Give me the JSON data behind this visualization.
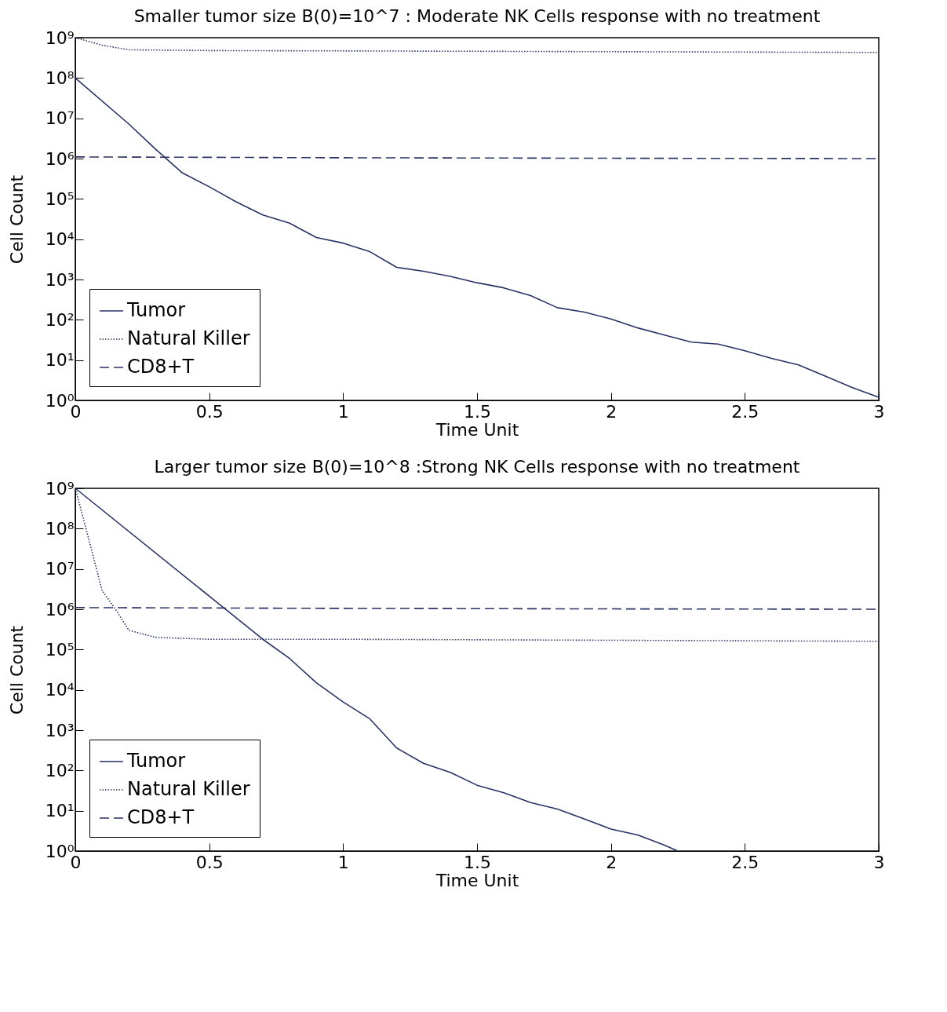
{
  "chart_data": [
    {
      "type": "line",
      "title": "Smaller tumor size B(0)=10^7 : Moderate NK Cells response with no treatment",
      "xlabel": "Time Unit",
      "ylabel": "Cell Count",
      "log": "y",
      "grid": false,
      "legend": "bottom left",
      "xlim": [
        0,
        3
      ],
      "xticks": [
        0,
        0.5,
        1,
        1.5,
        2,
        2.5,
        3
      ],
      "ylim": [
        1,
        1000000000
      ],
      "yticks": [
        {
          "value": 1,
          "label": "10⁰"
        },
        {
          "value": 10,
          "label": "10¹"
        },
        {
          "value": 100,
          "label": "10²"
        },
        {
          "value": 1000,
          "label": "10³"
        },
        {
          "value": 10000,
          "label": "10⁴"
        },
        {
          "value": 100000,
          "label": "10⁵"
        },
        {
          "value": 1000000,
          "label": "10⁶"
        },
        {
          "value": 10000000,
          "label": "10⁷"
        },
        {
          "value": 100000000,
          "label": "10⁸"
        },
        {
          "value": 1000000000,
          "label": "10⁹"
        }
      ],
      "series": [
        {
          "name": "Tumor",
          "color": "#283264",
          "line_style": "solid",
          "x": [
            0,
            0.2,
            0.3,
            0.4,
            0.5,
            0.6,
            0.7,
            0.8,
            0.9,
            1,
            1.1,
            1.2,
            1.3,
            1.4,
            1.5,
            1.6,
            1.7,
            1.8,
            1.9,
            2,
            2.1,
            2.2,
            2.3,
            2.4,
            2.5,
            2.6,
            2.7,
            2.8,
            2.9,
            3
          ],
          "values": [
            100000000,
            7200000,
            1700000,
            440000,
            200000,
            85000,
            40000,
            25000,
            11000,
            8000,
            4900,
            2000,
            1600,
            1200,
            830,
            620,
            400,
            200,
            155,
            105,
            63,
            42,
            28,
            25,
            17,
            11,
            7.6,
            4,
            2.1,
            1.2
          ]
        },
        {
          "name": "Natural Killer",
          "color": "#283264",
          "line_style": "dotted",
          "x": [
            0,
            0.1,
            0.2,
            0.5,
            1,
            2,
            3
          ],
          "values": [
            1000000000,
            650000000,
            500000000,
            480000000,
            470000000,
            450000000,
            430000000
          ]
        },
        {
          "name": "CD8+T",
          "color": "#283264",
          "line_style": "dashed",
          "x": [
            0,
            1,
            2,
            3
          ],
          "values": [
            1100000,
            1050000,
            1020000,
            1000000
          ]
        }
      ]
    },
    {
      "type": "line",
      "title": "Larger tumor size B(0)=10^8 :Strong NK Cells response with no treatment",
      "xlabel": "Time Unit",
      "ylabel": "Cell Count",
      "log": "y",
      "grid": false,
      "legend": "bottom left",
      "xlim": [
        0,
        3
      ],
      "xticks": [
        0,
        0.5,
        1,
        1.5,
        2,
        2.5,
        3
      ],
      "ylim": [
        1,
        1000000000
      ],
      "yticks": [
        {
          "value": 1,
          "label": "10⁰"
        },
        {
          "value": 10,
          "label": "10¹"
        },
        {
          "value": 100,
          "label": "10²"
        },
        {
          "value": 1000,
          "label": "10³"
        },
        {
          "value": 10000,
          "label": "10⁴"
        },
        {
          "value": 100000,
          "label": "10⁵"
        },
        {
          "value": 1000000,
          "label": "10⁶"
        },
        {
          "value": 10000000,
          "label": "10⁷"
        },
        {
          "value": 100000000,
          "label": "10⁸"
        },
        {
          "value": 1000000000,
          "label": "10⁹"
        }
      ],
      "series": [
        {
          "name": "Tumor",
          "color": "#283264",
          "line_style": "solid",
          "x": [
            0,
            0.7,
            0.8,
            0.9,
            1,
            1.1,
            1.2,
            1.3,
            1.4,
            1.5,
            1.6,
            1.7,
            1.8,
            1.9,
            2,
            2.1,
            2.2,
            2.25
          ],
          "values": [
            1000000000,
            180000,
            60000,
            15000,
            5000,
            1900,
            360,
            150,
            90,
            43,
            28,
            16,
            11,
            6.3,
            3.5,
            2.5,
            1.4,
            1
          ]
        },
        {
          "name": "Natural Killer",
          "color": "#283264",
          "line_style": "dotted",
          "x": [
            0,
            0.05,
            0.1,
            0.15,
            0.2,
            0.3,
            0.5,
            1,
            2,
            3
          ],
          "values": [
            1000000000,
            56000000,
            2900000,
            1000000,
            300000,
            200000,
            180000,
            180000,
            170000,
            160000
          ]
        },
        {
          "name": "CD8+T",
          "color": "#283264",
          "line_style": "dashed",
          "x": [
            0,
            1,
            2,
            3
          ],
          "values": [
            1100000,
            1050000,
            1020000,
            1000000
          ]
        }
      ]
    }
  ]
}
